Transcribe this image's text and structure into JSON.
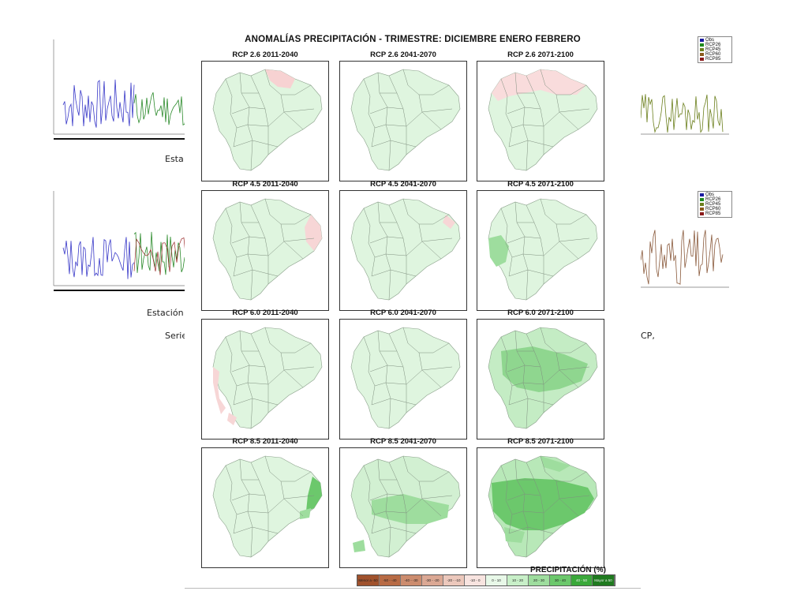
{
  "background": {
    "captions": [
      {
        "name": "caption-estacion-1",
        "text": "Esta"
      },
      {
        "name": "caption-estacion-2",
        "text": "Estación"
      },
      {
        "name": "caption-series-left",
        "text": "Serie"
      },
      {
        "name": "caption-series-right",
        "text": "CP,"
      }
    ],
    "legend": {
      "items": [
        {
          "label": "Obs",
          "color": "#1a1aa0"
        },
        {
          "label": "RCP26",
          "color": "#1e8a1e"
        },
        {
          "label": "RCP45",
          "color": "#6b7f1c"
        },
        {
          "label": "RCP60",
          "color": "#8a5a1c"
        },
        {
          "label": "RCP85",
          "color": "#8b1a1a"
        }
      ]
    }
  },
  "figure": {
    "title": "ANOMALÍAS PRECIPITACIÓN - TRIMESTRE: DICIEMBRE ENERO FEBRERO",
    "panels": [
      {
        "label": "RCP 2.6 2011-2040",
        "fill": "#dff5df",
        "accent": "pink-northeast"
      },
      {
        "label": "RCP 2.6 2041-2070",
        "fill": "#dff5df",
        "accent": "none"
      },
      {
        "label": "RCP 2.6 2071-2100",
        "fill": "#dff5df",
        "accent": "pink-north"
      },
      {
        "label": "RCP 4.5 2011-2040",
        "fill": "#dff5df",
        "accent": "pink-east"
      },
      {
        "label": "RCP 4.5 2041-2070",
        "fill": "#dff5df",
        "accent": "pink-small"
      },
      {
        "label": "RCP 4.5 2071-2100",
        "fill": "#dff5df",
        "accent": "green-coast"
      },
      {
        "label": "RCP 6.0 2011-2040",
        "fill": "#dff5df",
        "accent": "pink-west"
      },
      {
        "label": "RCP 6.0 2041-2070",
        "fill": "#dff5df",
        "accent": "none"
      },
      {
        "label": "RCP 6.0 2071-2100",
        "fill": "#c4ecc4",
        "accent": "green-center"
      },
      {
        "label": "RCP 8.5 2011-2040",
        "fill": "#dff5df",
        "accent": "green-east"
      },
      {
        "label": "RCP 8.5 2041-2070",
        "fill": "#d2f0d2",
        "accent": "green-band"
      },
      {
        "label": "RCP 8.5 2071-2100",
        "fill": "#b8e8b8",
        "accent": "green-strong"
      }
    ],
    "legend_title": "PRECIPITACIÓN (%)",
    "scale": [
      {
        "label": "Menor a -50",
        "color": "#a0522d"
      },
      {
        "label": "-50 - -40",
        "color": "#b86b45"
      },
      {
        "label": "-40 - -30",
        "color": "#cc8c6e"
      },
      {
        "label": "-30 - -20",
        "color": "#dba894"
      },
      {
        "label": "-20 - -10",
        "color": "#ecc8bc"
      },
      {
        "label": "-10 - 0",
        "color": "#f8e4e0"
      },
      {
        "label": "0 - 10",
        "color": "#e8f8e8"
      },
      {
        "label": "10 - 20",
        "color": "#c8efc8"
      },
      {
        "label": "20 - 30",
        "color": "#9edd9e"
      },
      {
        "label": "30 - 40",
        "color": "#6cc86c"
      },
      {
        "label": "40 - 50",
        "color": "#3aa83a"
      },
      {
        "label": "Mayor a 50",
        "color": "#1f7a1f"
      }
    ]
  }
}
